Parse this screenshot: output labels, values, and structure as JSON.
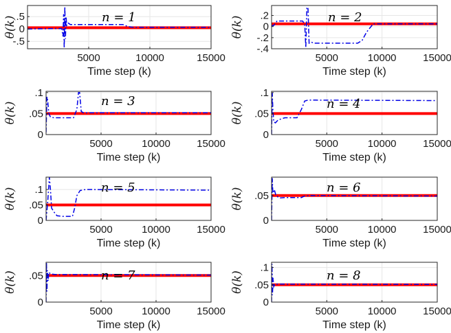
{
  "colors": {
    "reference": "#ff0000",
    "estimate": "#0000e6"
  },
  "chart_data": [
    {
      "type": "line",
      "title": "n = 1",
      "xlabel": "Time step (k)",
      "ylabel": "θ(k)",
      "xlim": [
        0,
        15000
      ],
      "ylim": [
        -0.8,
        0.95
      ],
      "x_ticks": [
        5000,
        10000,
        15000
      ],
      "y_ticks": [
        -0.5,
        0,
        0.5
      ],
      "grid": true,
      "series": [
        {
          "style": "solid-red",
          "x": [
            0,
            15000
          ],
          "y": [
            0.05,
            0.05
          ]
        },
        {
          "style": "dashdot-blue",
          "x": [
            0,
            2800,
            2900,
            2950,
            3000,
            3050,
            3100,
            3150,
            3200,
            3300,
            3500,
            4000,
            7800,
            8200,
            8600,
            15000
          ],
          "y": [
            0,
            0.02,
            -0.3,
            0.6,
            -0.78,
            0.9,
            -0.4,
            0.5,
            0.15,
            0.25,
            0.18,
            0.18,
            0.18,
            0.1,
            0.07,
            0.07
          ]
        }
      ]
    },
    {
      "type": "line",
      "title": "n = 2",
      "xlabel": "Time step (k)",
      "ylabel": "θ(k)",
      "xlim": [
        0,
        15000
      ],
      "ylim": [
        -0.4,
        0.38
      ],
      "x_ticks": [
        5000,
        10000,
        15000
      ],
      "y_ticks": [
        -0.4,
        -0.2,
        0,
        0.2
      ],
      "grid": true,
      "series": [
        {
          "style": "solid-red",
          "x": [
            0,
            15000
          ],
          "y": [
            0.05,
            0.05
          ]
        },
        {
          "style": "dashdot-blue",
          "x": [
            0,
            100,
            200,
            500,
            2800,
            3000,
            3100,
            3200,
            3300,
            3400,
            3600,
            3800,
            7800,
            8200,
            8600,
            9200,
            15000
          ],
          "y": [
            0,
            0.02,
            0.02,
            0.1,
            0.1,
            0.05,
            -0.38,
            0.35,
            0.33,
            -0.3,
            -0.28,
            -0.3,
            -0.3,
            -0.25,
            -0.1,
            0.05,
            0.05
          ]
        }
      ]
    },
    {
      "type": "line",
      "title": "n = 3",
      "xlabel": "Time step (k)",
      "ylabel": "θ(k)",
      "xlim": [
        0,
        15000
      ],
      "ylim": [
        0,
        0.103
      ],
      "x_ticks": [
        5000,
        10000,
        15000
      ],
      "y_ticks": [
        0,
        0.05,
        0.1
      ],
      "grid": true,
      "series": [
        {
          "style": "solid-red",
          "x": [
            0,
            15000
          ],
          "y": [
            0.05,
            0.05
          ]
        },
        {
          "style": "dashdot-blue",
          "x": [
            0,
            80,
            150,
            250,
            400,
            700,
            1200,
            2500,
            2800,
            2950,
            3050,
            3200,
            3400,
            15000
          ],
          "y": [
            0.005,
            0.09,
            0.08,
            0.05,
            0.042,
            0.04,
            0.04,
            0.04,
            0.06,
            0.1,
            0.1,
            0.055,
            0.052,
            0.052
          ]
        }
      ]
    },
    {
      "type": "line",
      "title": "n = 4",
      "xlabel": "Time step (k)",
      "ylabel": "θ(k)",
      "xlim": [
        0,
        15000
      ],
      "ylim": [
        0,
        0.103
      ],
      "x_ticks": [
        5000,
        10000,
        15000
      ],
      "y_ticks": [
        0,
        0.05,
        0.1
      ],
      "grid": true,
      "series": [
        {
          "style": "solid-red",
          "x": [
            0,
            15000
          ],
          "y": [
            0.05,
            0.05
          ]
        },
        {
          "style": "dashdot-blue",
          "x": [
            0,
            60,
            120,
            200,
            350,
            600,
            1200,
            2300,
            2700,
            3000,
            3300,
            4000,
            15000
          ],
          "y": [
            0.0,
            0.1,
            0.06,
            0.03,
            0.028,
            0.035,
            0.04,
            0.04,
            0.06,
            0.08,
            0.082,
            0.082,
            0.081
          ]
        }
      ]
    },
    {
      "type": "line",
      "title": "n = 5",
      "xlabel": "Time step (k)",
      "ylabel": "θ(k)",
      "xlim": [
        0,
        15000
      ],
      "ylim": [
        0,
        0.14
      ],
      "x_ticks": [
        5000,
        10000,
        15000
      ],
      "y_ticks": [
        0,
        0.05,
        0.1
      ],
      "grid": true,
      "series": [
        {
          "style": "solid-red",
          "x": [
            0,
            15000
          ],
          "y": [
            0.05,
            0.05
          ]
        },
        {
          "style": "dashdot-blue",
          "x": [
            0,
            150,
            300,
            400,
            500,
            700,
            1000,
            1500,
            2400,
            2600,
            2800,
            3100,
            3600,
            15000
          ],
          "y": [
            0,
            0.06,
            0.14,
            0.1,
            0.04,
            0.028,
            0.015,
            0.013,
            0.013,
            0.04,
            0.08,
            0.097,
            0.1,
            0.098
          ]
        }
      ]
    },
    {
      "type": "line",
      "title": "n = 6",
      "xlabel": "Time step (k)",
      "ylabel": "θ(k)",
      "xlim": [
        0,
        15000
      ],
      "ylim": [
        0,
        0.087
      ],
      "x_ticks": [
        5000,
        10000,
        15000
      ],
      "y_ticks": [
        0,
        0.05
      ],
      "grid": true,
      "series": [
        {
          "style": "solid-red",
          "x": [
            0,
            15000
          ],
          "y": [
            0.05,
            0.05
          ]
        },
        {
          "style": "dashdot-blue",
          "x": [
            0,
            60,
            120,
            250,
            400,
            700,
            1200,
            2700,
            3000,
            3500,
            15000
          ],
          "y": [
            0.0,
            0.085,
            0.055,
            0.062,
            0.05,
            0.045,
            0.046,
            0.046,
            0.049,
            0.05,
            0.049
          ]
        }
      ]
    },
    {
      "type": "line",
      "title": "n = 7",
      "xlabel": "Time step (k)",
      "ylabel": "θ(k)",
      "xlim": [
        0,
        15000
      ],
      "ylim": [
        0,
        0.075
      ],
      "x_ticks": [
        5000,
        10000,
        15000
      ],
      "y_ticks": [
        0,
        0.05
      ],
      "grid": true,
      "series": [
        {
          "style": "solid-red",
          "x": [
            0,
            15000
          ],
          "y": [
            0.05,
            0.05
          ]
        },
        {
          "style": "dashdot-blue",
          "x": [
            0,
            40,
            80,
            120,
            180,
            260,
            400,
            800,
            15000
          ],
          "y": [
            0.0,
            0.075,
            0.02,
            0.06,
            0.04,
            0.056,
            0.053,
            0.052,
            0.051
          ]
        }
      ]
    },
    {
      "type": "line",
      "title": "n = 8",
      "xlabel": "Time step (k)",
      "ylabel": "θ(k)",
      "xlim": [
        0,
        15000
      ],
      "ylim": [
        0,
        0.115
      ],
      "x_ticks": [
        5000,
        10000,
        15000
      ],
      "y_ticks": [
        0,
        0.05,
        0.1
      ],
      "grid": true,
      "series": [
        {
          "style": "solid-red",
          "x": [
            0,
            15000
          ],
          "y": [
            0.05,
            0.05
          ]
        },
        {
          "style": "dashdot-blue",
          "x": [
            0,
            40,
            80,
            140,
            200,
            300,
            500,
            1000,
            15000
          ],
          "y": [
            0.0,
            0.11,
            0.02,
            0.07,
            0.045,
            0.052,
            0.052,
            0.052,
            0.051
          ]
        }
      ]
    }
  ]
}
